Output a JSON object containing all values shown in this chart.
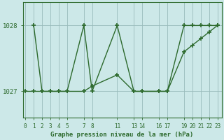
{
  "title": "Graphe pression niveau de la mer (hPa)",
  "background_color": "#cce8e8",
  "plot_bg_color": "#cce8e8",
  "line_color": "#2d6a2d",
  "grid_color": "#99bbbb",
  "yticks": [
    1027,
    1028
  ],
  "ylim": [
    1026.6,
    1028.35
  ],
  "xlim": [
    -0.3,
    23.5
  ],
  "line1_x": [
    1,
    2,
    3,
    4,
    5,
    7,
    8,
    11,
    13,
    14,
    16,
    17,
    19,
    20,
    21,
    22,
    23
  ],
  "line1_y": [
    1028,
    1027,
    1027,
    1027,
    1027,
    1028,
    1027,
    1028,
    1027,
    1027,
    1027,
    1027,
    1028,
    1028,
    1028,
    1028,
    1028
  ],
  "line2_x": [
    0,
    1,
    2,
    3,
    4,
    5,
    7,
    8,
    11,
    13,
    14,
    16,
    17,
    19,
    20,
    21,
    22,
    23
  ],
  "line2_y": [
    1027,
    1027,
    1027,
    1027,
    1027,
    1027,
    1027,
    1027.08,
    1027.25,
    1027,
    1027,
    1027,
    1027,
    1027.6,
    1027.7,
    1027.8,
    1027.9,
    1028
  ],
  "xtick_positions": [
    0,
    1,
    2,
    3,
    4,
    5,
    7,
    8,
    11,
    13,
    14,
    16,
    17,
    19,
    20,
    21,
    22,
    23
  ],
  "xtick_labels": [
    "0",
    "1",
    "2",
    "3",
    "4",
    "5",
    "7",
    "8",
    "11",
    "13",
    "14",
    "16",
    "17",
    "19",
    "20",
    "21",
    "22",
    "23"
  ]
}
